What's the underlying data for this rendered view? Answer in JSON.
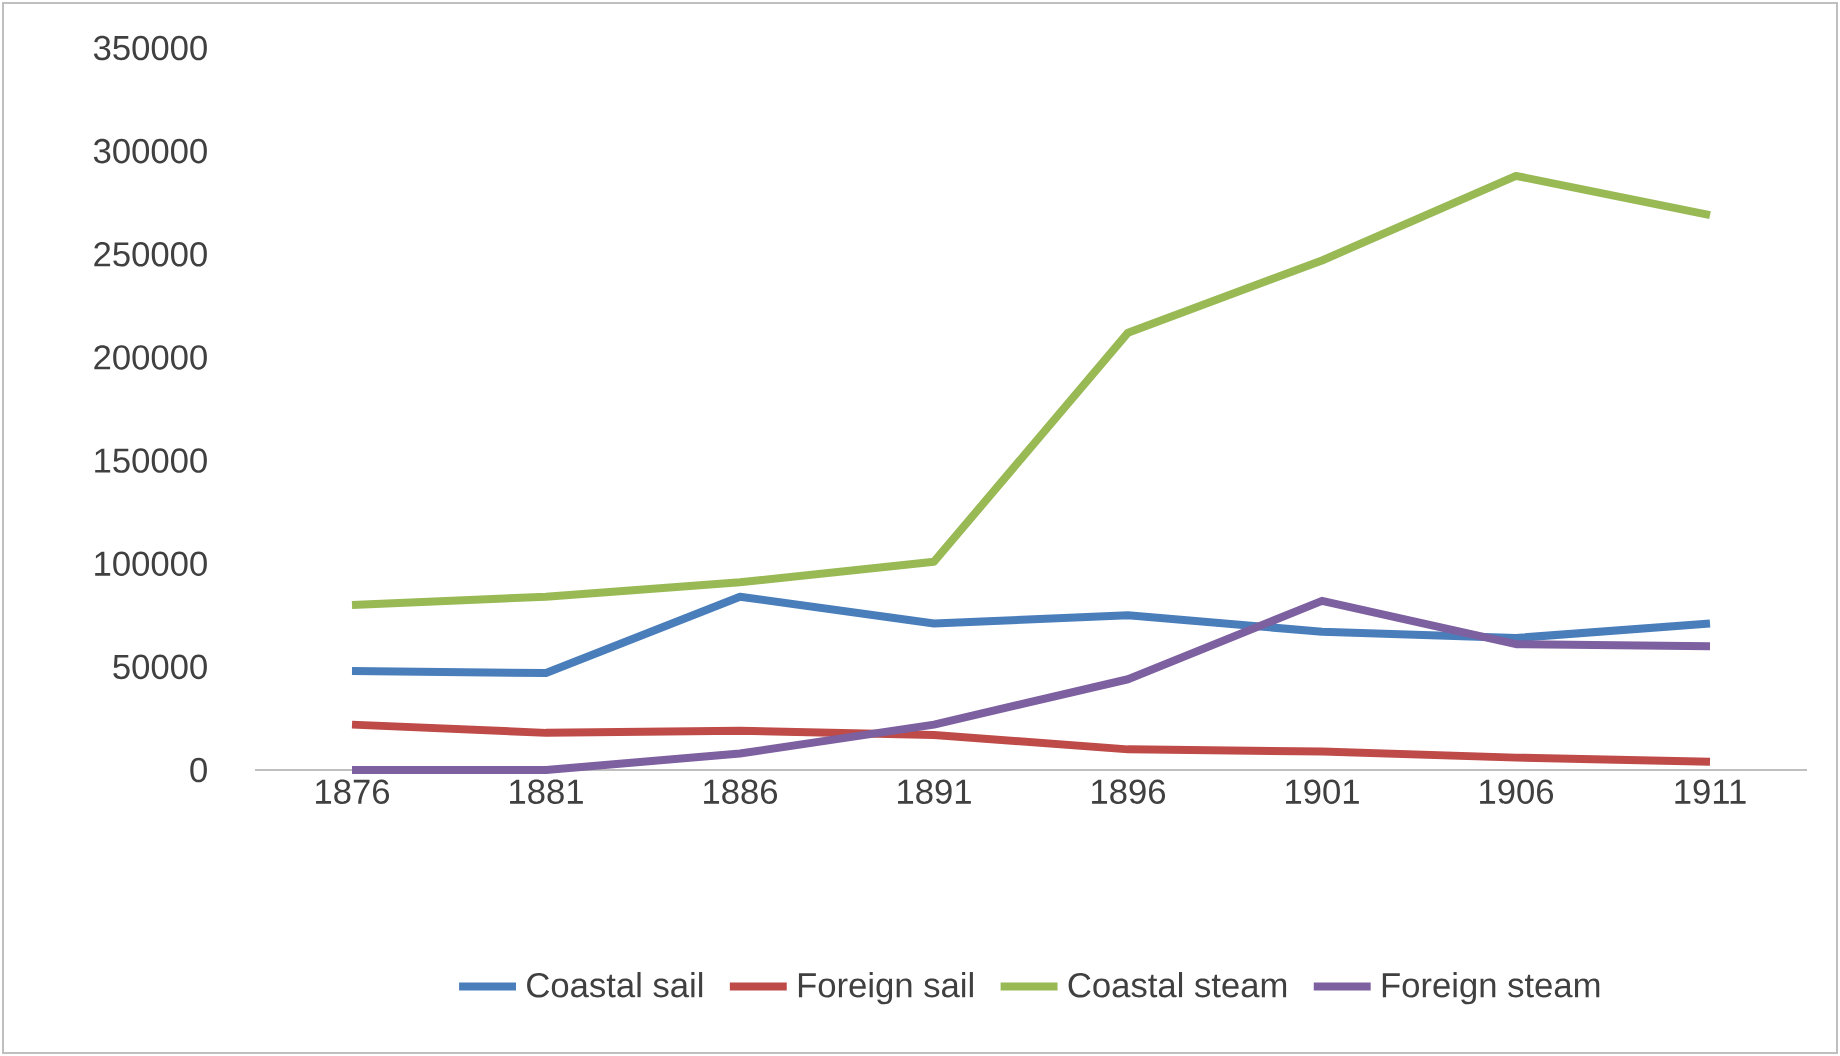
{
  "chart_data": {
    "type": "line",
    "categories": [
      "1876",
      "1881",
      "1886",
      "1891",
      "1896",
      "1901",
      "1906",
      "1911"
    ],
    "series": [
      {
        "name": "Coastal sail",
        "color": "#4a7ebb",
        "values": [
          48000,
          47000,
          84000,
          71000,
          75000,
          67000,
          64000,
          71000
        ]
      },
      {
        "name": "Foreign sail",
        "color": "#be4b48",
        "values": [
          22000,
          18000,
          19000,
          17000,
          10000,
          9000,
          6000,
          4000
        ]
      },
      {
        "name": "Coastal steam",
        "color": "#98b954",
        "values": [
          80000,
          84000,
          91000,
          101000,
          212000,
          247000,
          288000,
          269000
        ]
      },
      {
        "name": "Foreign steam",
        "color": "#7d60a0",
        "values": [
          0,
          0,
          8000,
          22000,
          44000,
          82000,
          61000,
          60000
        ]
      }
    ],
    "ylim": [
      0,
      350000
    ],
    "yticks": [
      0,
      50000,
      100000,
      150000,
      200000,
      250000,
      300000,
      350000
    ],
    "legend": "bottom",
    "marker": "none",
    "line_style": "solid"
  }
}
